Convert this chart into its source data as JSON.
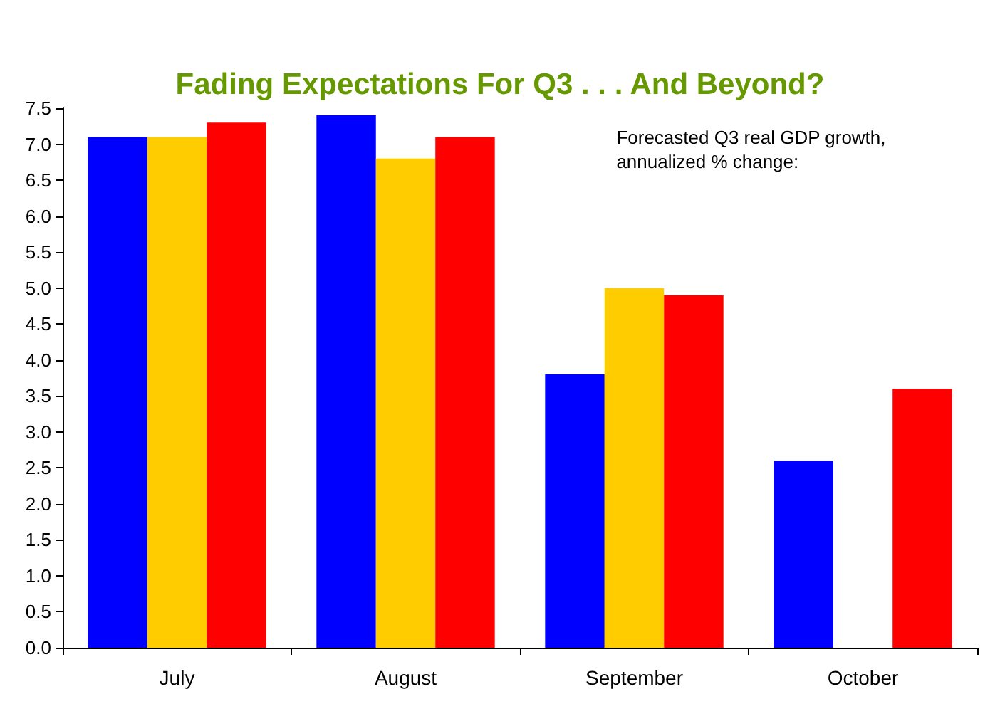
{
  "chart_data": {
    "type": "bar",
    "title": "Fading Expectations For Q3 . . . And Beyond?",
    "categories": [
      "July",
      "August",
      "September",
      "October"
    ],
    "series": [
      {
        "color": "#0000ff",
        "values": [
          7.1,
          7.4,
          3.8,
          2.6
        ]
      },
      {
        "color": "#ffcc00",
        "values": [
          7.1,
          6.8,
          5.0,
          null
        ]
      },
      {
        "color": "#ff0000",
        "values": [
          7.3,
          7.1,
          4.9,
          3.6
        ]
      }
    ],
    "ylim": [
      0,
      7.5
    ],
    "yticks": [
      {
        "value": 0,
        "label": "0.0"
      },
      {
        "value": 0.5,
        "label": "0.5"
      },
      {
        "value": 1,
        "label": "1.0"
      },
      {
        "value": 1.5,
        "label": "1.5"
      },
      {
        "value": 2,
        "label": "2.0"
      },
      {
        "value": 2.5,
        "label": "2.5"
      },
      {
        "value": 3,
        "label": "3.0"
      },
      {
        "value": 3.5,
        "label": "3.5"
      },
      {
        "value": 4,
        "label": "4.0"
      },
      {
        "value": 4.5,
        "label": "4.5"
      },
      {
        "value": 5,
        "label": "5.0"
      },
      {
        "value": 5.5,
        "label": "5.5"
      },
      {
        "value": 6,
        "label": "6.0"
      },
      {
        "value": 6.5,
        "label": "6.5"
      },
      {
        "value": 7,
        "label": "7.0"
      },
      {
        "value": 7.5,
        "label": "7.5"
      }
    ],
    "annotations": [
      "Forecasted Q3 real GDP growth,\nannualized % change:"
    ],
    "grid": false
  }
}
